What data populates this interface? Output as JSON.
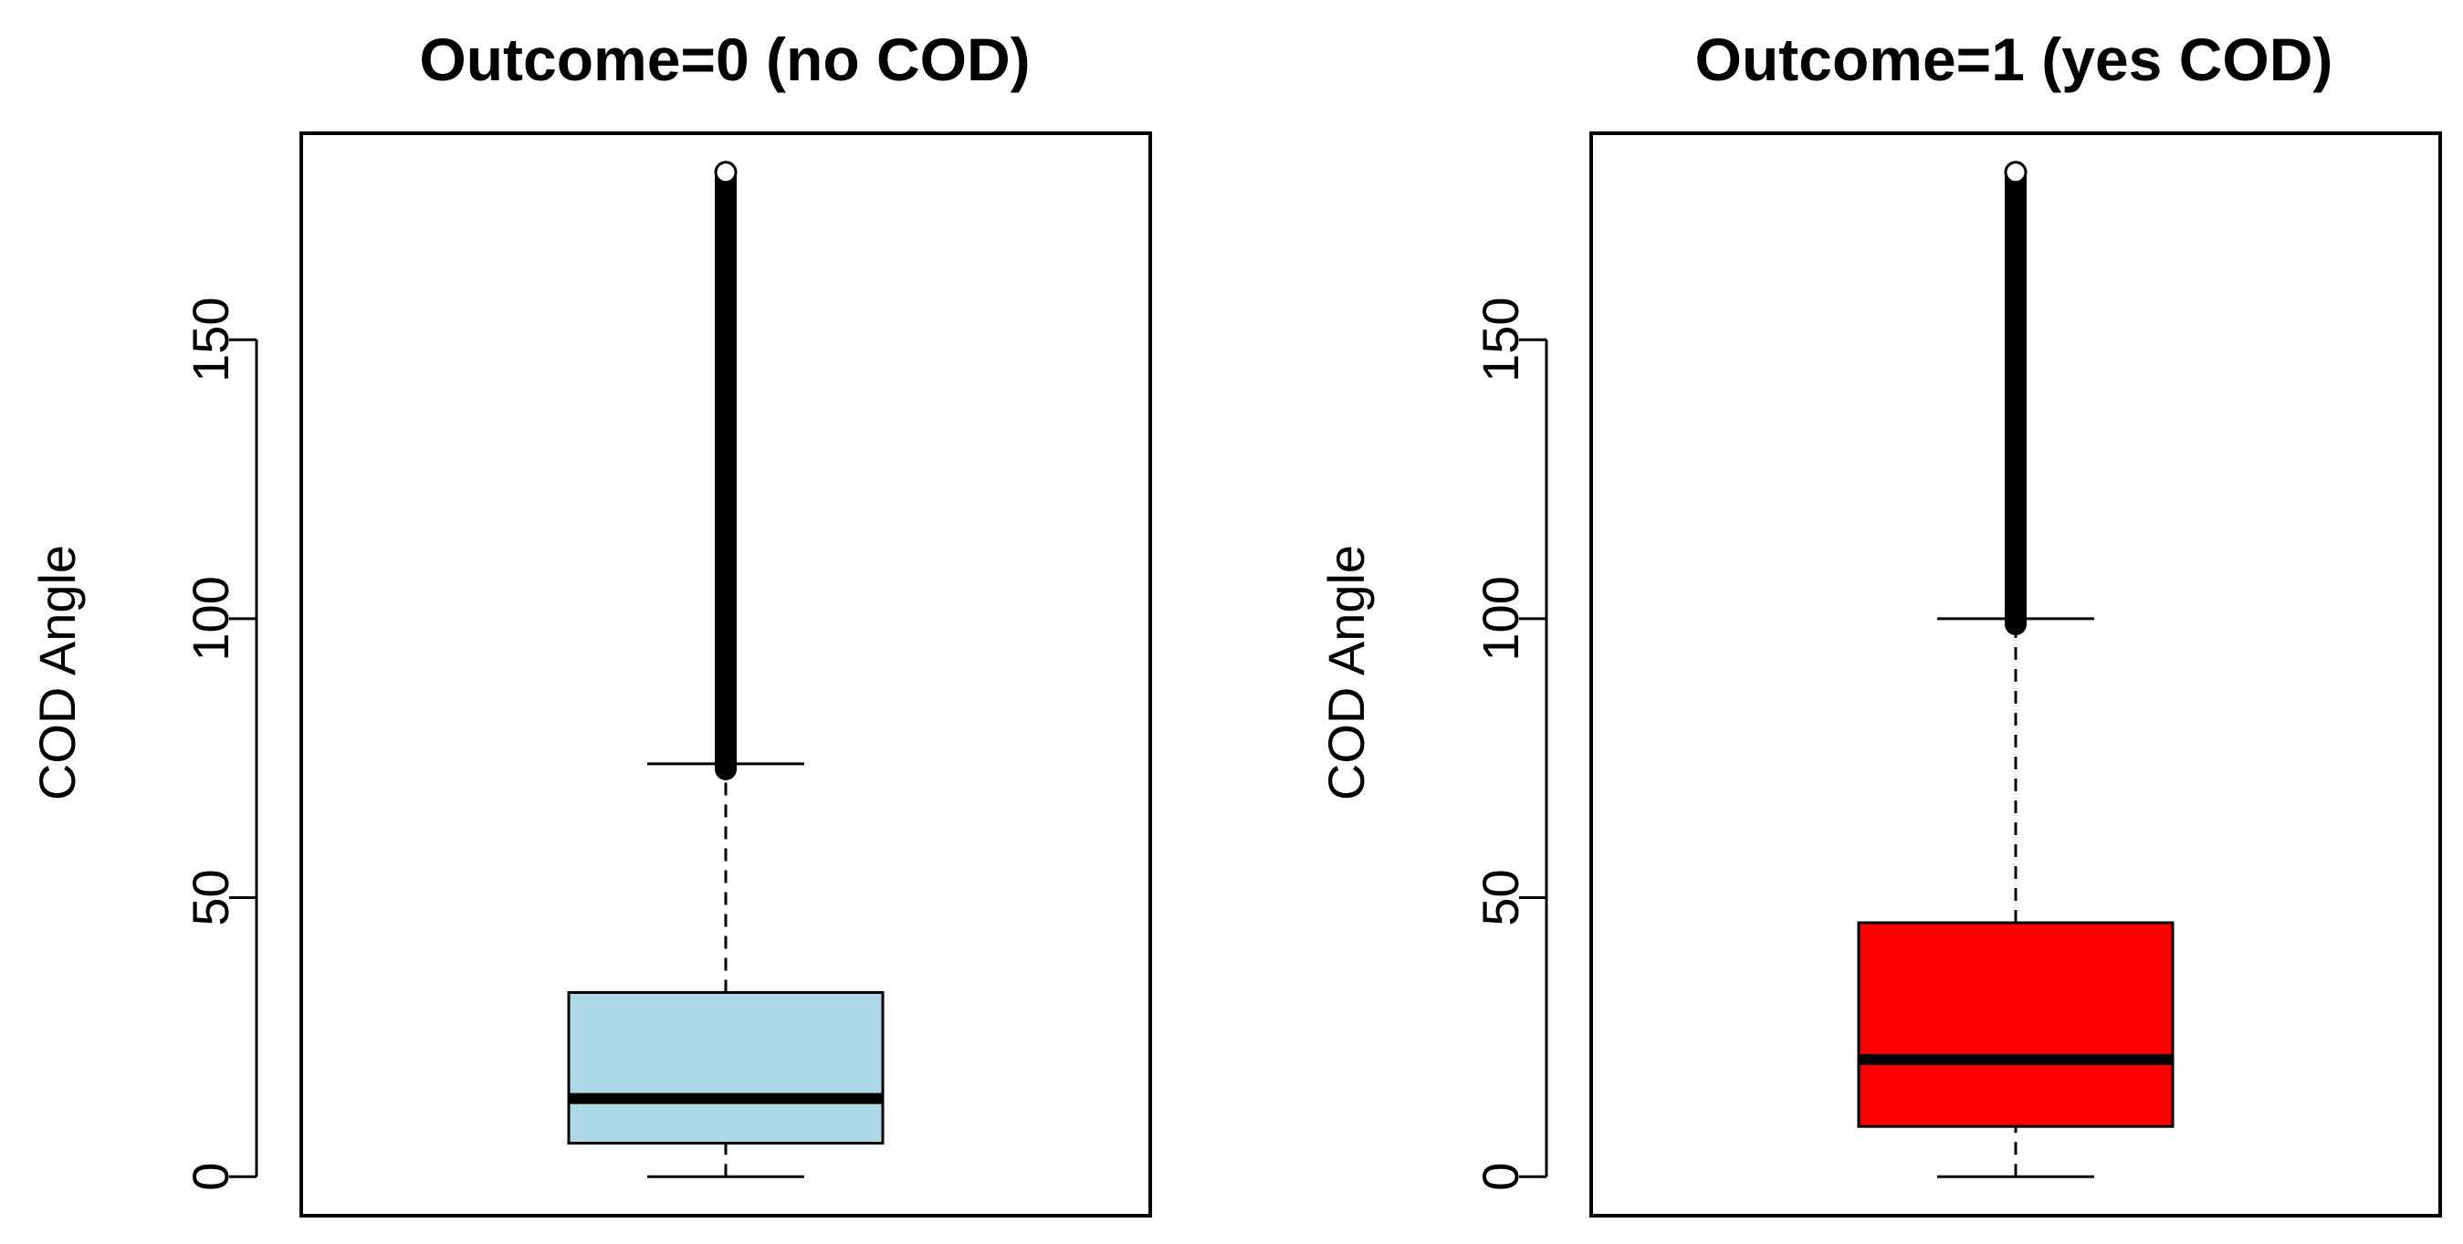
{
  "chart_data": [
    {
      "type": "box",
      "title": "Outcome=0 (no COD)",
      "xlabel": "",
      "ylabel": "COD Angle",
      "ylim": [
        -7,
        187
      ],
      "yticks": [
        0,
        50,
        100,
        150
      ],
      "yticklabels": [
        "0",
        "50",
        "100",
        "150"
      ],
      "box": {
        "min": 0,
        "q1": 6,
        "median": 14,
        "q3": 33,
        "whisker_high": 74,
        "outliers_from": 73,
        "outliers_to": 180
      },
      "fill_color": "#add8e6"
    },
    {
      "type": "box",
      "title": "Outcome=1 (yes COD)",
      "xlabel": "",
      "ylabel": "COD Angle",
      "ylim": [
        -7,
        187
      ],
      "yticks": [
        0,
        50,
        100,
        150
      ],
      "yticklabels": [
        "0",
        "50",
        "100",
        "150"
      ],
      "box": {
        "min": 0,
        "q1": 9,
        "median": 21,
        "q3": 45.5,
        "whisker_high": 100,
        "outliers_from": 99,
        "outliers_to": 180
      },
      "fill_color": "#ff0000"
    }
  ]
}
